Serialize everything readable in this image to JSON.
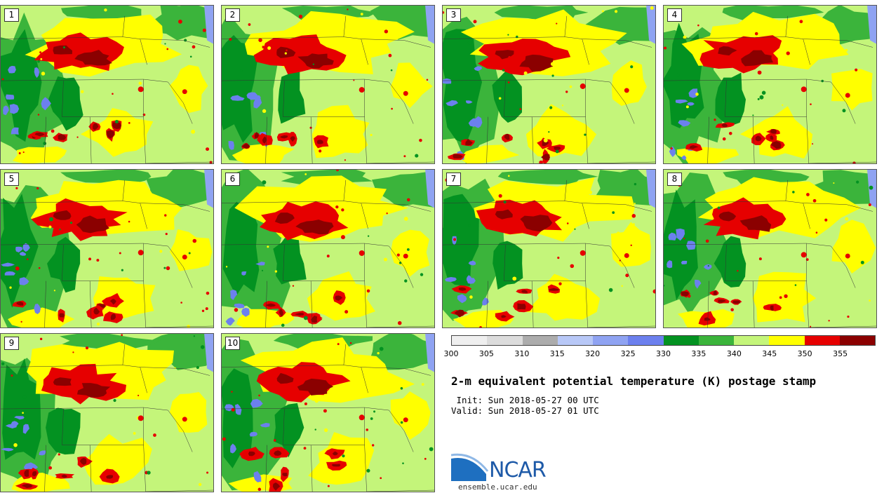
{
  "colors": {
    "c300": "#efefef",
    "c305": "#dcdcdc",
    "c310": "#acacac",
    "c315": "#b8c8f7",
    "c320": "#8fa3f2",
    "c325": "#6c80ee",
    "c330": "#039221",
    "c335": "#3bb43b",
    "c340": "#c4f57a",
    "c345": "#ffff00",
    "c350": "#e60000",
    "c355": "#8b0000"
  },
  "colorbar": {
    "colors": [
      "#efefef",
      "#dcdcdc",
      "#acacac",
      "#b8c8f7",
      "#8fa3f2",
      "#6c80ee",
      "#039221",
      "#3bb43b",
      "#c4f57a",
      "#ffff00",
      "#e60000",
      "#8b0000"
    ],
    "ticks": [
      "300",
      "305",
      "310",
      "315",
      "320",
      "325",
      "330",
      "335",
      "340",
      "345",
      "350",
      "355"
    ]
  },
  "members": [
    "1",
    "2",
    "3",
    "4",
    "5",
    "6",
    "7",
    "8",
    "9",
    "10"
  ],
  "title": "2-m equivalent potential temperature (K) postage stamp",
  "init": " Init: Sun 2018-05-27 00 UTC",
  "valid": "Valid: Sun 2018-05-27 01 UTC",
  "logo": {
    "text": "NCAR",
    "site": "ensemble.ucar.edu"
  }
}
